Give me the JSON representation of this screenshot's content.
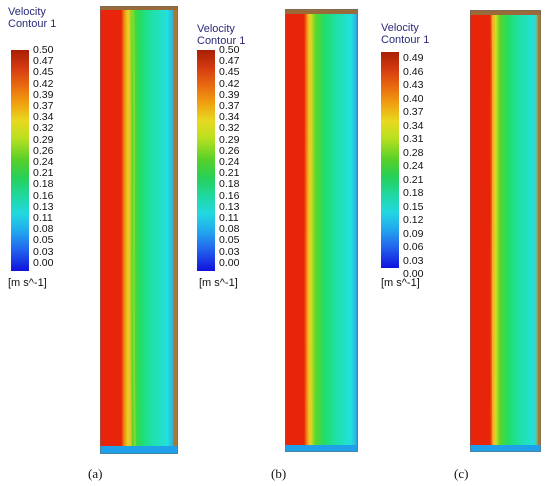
{
  "panels": [
    {
      "legend_title": "Velocity",
      "legend_subtitle": "Contour 1",
      "ticks": [
        "0.50",
        "0.47",
        "0.45",
        "0.42",
        "0.39",
        "0.37",
        "0.34",
        "0.32",
        "0.29",
        "0.26",
        "0.24",
        "0.21",
        "0.18",
        "0.16",
        "0.13",
        "0.11",
        "0.08",
        "0.05",
        "0.03",
        "0.00"
      ],
      "units": "[m s^-1]",
      "caption": "(a)"
    },
    {
      "legend_title": "Velocity",
      "legend_subtitle": "Contour 1",
      "ticks": [
        "0.50",
        "0.47",
        "0.45",
        "0.42",
        "0.39",
        "0.37",
        "0.34",
        "0.32",
        "0.29",
        "0.26",
        "0.24",
        "0.21",
        "0.18",
        "0.16",
        "0.13",
        "0.11",
        "0.08",
        "0.05",
        "0.03",
        "0.00"
      ],
      "units": "[m s^-1]",
      "caption": "(b)"
    },
    {
      "legend_title": "Velocity",
      "legend_subtitle": "Contour 1",
      "ticks": [
        "0.49",
        "0.46",
        "0.43",
        "0.40",
        "0.37",
        "0.34",
        "0.31",
        "0.28",
        "0.24",
        "0.21",
        "0.18",
        "0.15",
        "0.12",
        "0.09",
        "0.06",
        "0.03",
        "0.00"
      ],
      "units": "[m s^-1]",
      "caption": "(c)"
    }
  ],
  "colors": {
    "high": "#c81e00",
    "mid": "#33cc33",
    "low": "#1111dd",
    "cyan": "#22e0dd"
  }
}
